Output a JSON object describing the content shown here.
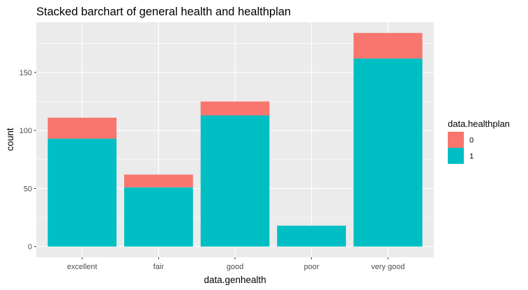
{
  "chart_data": {
    "type": "bar",
    "stacked": true,
    "title": "Stacked barchart of general health and healthplan",
    "xlabel": "data.genhealth",
    "ylabel": "count",
    "categories": [
      "excellent",
      "fair",
      "good",
      "poor",
      "very good"
    ],
    "series": [
      {
        "name": "1",
        "color": "#00BFC4",
        "values": [
          93,
          51,
          113,
          18,
          162
        ]
      },
      {
        "name": "0",
        "color": "#F8766D",
        "values": [
          18,
          11,
          12,
          0,
          22
        ]
      }
    ],
    "ylim": [
      -9.2,
      193.2
    ],
    "yticks": [
      0,
      50,
      100,
      150
    ],
    "ytick_labels": [
      "0",
      "50",
      "100",
      "150"
    ],
    "grid": true,
    "panel_background": "#EBEBEB",
    "grid_color": "#FFFFFF",
    "legend": {
      "title": "data.healthplan",
      "placement": "right",
      "entries": [
        {
          "label": "0",
          "color": "#F8766D"
        },
        {
          "label": "1",
          "color": "#00BFC4"
        }
      ]
    }
  }
}
